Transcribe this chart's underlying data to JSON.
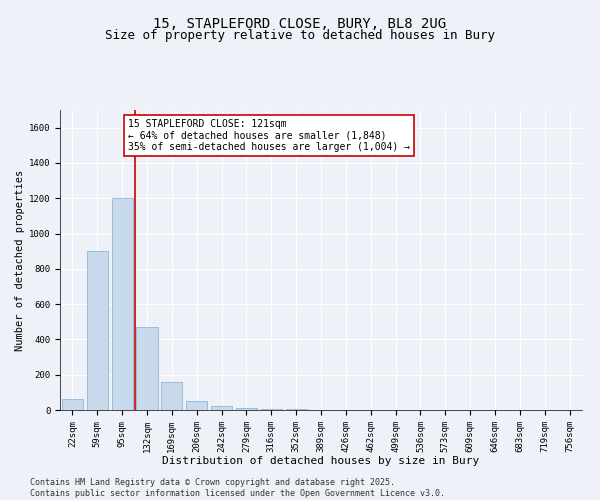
{
  "title_line1": "15, STAPLEFORD CLOSE, BURY, BL8 2UG",
  "title_line2": "Size of property relative to detached houses in Bury",
  "xlabel": "Distribution of detached houses by size in Bury",
  "ylabel": "Number of detached properties",
  "bar_color": "#c8d9ec",
  "bar_edge_color": "#7aaed0",
  "vline_color": "#cc0000",
  "annotation_text": "15 STAPLEFORD CLOSE: 121sqm\n← 64% of detached houses are smaller (1,848)\n35% of semi-detached houses are larger (1,004) →",
  "annotation_box_color": "#ffffff",
  "annotation_box_edge": "#cc0000",
  "categories": [
    "22sqm",
    "59sqm",
    "95sqm",
    "132sqm",
    "169sqm",
    "206sqm",
    "242sqm",
    "279sqm",
    "316sqm",
    "352sqm",
    "389sqm",
    "426sqm",
    "462sqm",
    "499sqm",
    "536sqm",
    "573sqm",
    "609sqm",
    "646sqm",
    "683sqm",
    "719sqm",
    "756sqm"
  ],
  "values": [
    60,
    900,
    1200,
    470,
    160,
    50,
    20,
    12,
    5,
    5,
    0,
    0,
    0,
    0,
    0,
    0,
    0,
    0,
    0,
    0,
    0
  ],
  "ylim": [
    0,
    1700
  ],
  "yticks": [
    0,
    200,
    400,
    600,
    800,
    1000,
    1200,
    1400,
    1600
  ],
  "background_color": "#eef2f8",
  "plot_bg_color": "#eef2f8",
  "grid_color": "#ffffff",
  "footer": "Contains HM Land Registry data © Crown copyright and database right 2025.\nContains public sector information licensed under the Open Government Licence v3.0.",
  "title_fontsize": 10,
  "subtitle_fontsize": 9,
  "xlabel_fontsize": 8,
  "ylabel_fontsize": 7.5,
  "tick_fontsize": 6.5,
  "footer_fontsize": 6
}
